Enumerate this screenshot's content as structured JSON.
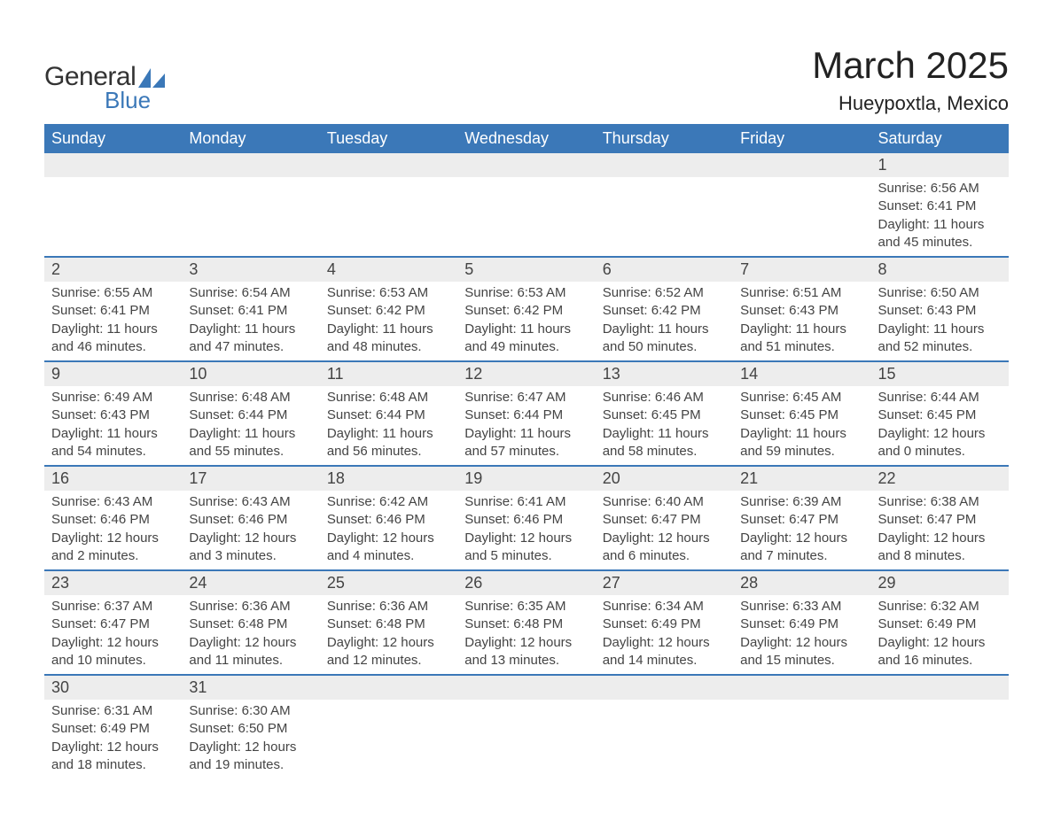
{
  "logo": {
    "text1": "General",
    "text2": "Blue",
    "shape_color": "#3b78b8"
  },
  "title": "March 2025",
  "location": "Hueypoxtla, Mexico",
  "colors": {
    "header_bg": "#3b78b8",
    "header_text": "#ffffff",
    "daynum_bg": "#ededed",
    "row_divider": "#3b78b8",
    "body_text": "#444444"
  },
  "day_headers": [
    "Sunday",
    "Monday",
    "Tuesday",
    "Wednesday",
    "Thursday",
    "Friday",
    "Saturday"
  ],
  "weeks": [
    [
      null,
      null,
      null,
      null,
      null,
      null,
      {
        "n": "1",
        "sr": "6:56 AM",
        "ss": "6:41 PM",
        "dl": "11 hours and 45 minutes."
      }
    ],
    [
      {
        "n": "2",
        "sr": "6:55 AM",
        "ss": "6:41 PM",
        "dl": "11 hours and 46 minutes."
      },
      {
        "n": "3",
        "sr": "6:54 AM",
        "ss": "6:41 PM",
        "dl": "11 hours and 47 minutes."
      },
      {
        "n": "4",
        "sr": "6:53 AM",
        "ss": "6:42 PM",
        "dl": "11 hours and 48 minutes."
      },
      {
        "n": "5",
        "sr": "6:53 AM",
        "ss": "6:42 PM",
        "dl": "11 hours and 49 minutes."
      },
      {
        "n": "6",
        "sr": "6:52 AM",
        "ss": "6:42 PM",
        "dl": "11 hours and 50 minutes."
      },
      {
        "n": "7",
        "sr": "6:51 AM",
        "ss": "6:43 PM",
        "dl": "11 hours and 51 minutes."
      },
      {
        "n": "8",
        "sr": "6:50 AM",
        "ss": "6:43 PM",
        "dl": "11 hours and 52 minutes."
      }
    ],
    [
      {
        "n": "9",
        "sr": "6:49 AM",
        "ss": "6:43 PM",
        "dl": "11 hours and 54 minutes."
      },
      {
        "n": "10",
        "sr": "6:48 AM",
        "ss": "6:44 PM",
        "dl": "11 hours and 55 minutes."
      },
      {
        "n": "11",
        "sr": "6:48 AM",
        "ss": "6:44 PM",
        "dl": "11 hours and 56 minutes."
      },
      {
        "n": "12",
        "sr": "6:47 AM",
        "ss": "6:44 PM",
        "dl": "11 hours and 57 minutes."
      },
      {
        "n": "13",
        "sr": "6:46 AM",
        "ss": "6:45 PM",
        "dl": "11 hours and 58 minutes."
      },
      {
        "n": "14",
        "sr": "6:45 AM",
        "ss": "6:45 PM",
        "dl": "11 hours and 59 minutes."
      },
      {
        "n": "15",
        "sr": "6:44 AM",
        "ss": "6:45 PM",
        "dl": "12 hours and 0 minutes."
      }
    ],
    [
      {
        "n": "16",
        "sr": "6:43 AM",
        "ss": "6:46 PM",
        "dl": "12 hours and 2 minutes."
      },
      {
        "n": "17",
        "sr": "6:43 AM",
        "ss": "6:46 PM",
        "dl": "12 hours and 3 minutes."
      },
      {
        "n": "18",
        "sr": "6:42 AM",
        "ss": "6:46 PM",
        "dl": "12 hours and 4 minutes."
      },
      {
        "n": "19",
        "sr": "6:41 AM",
        "ss": "6:46 PM",
        "dl": "12 hours and 5 minutes."
      },
      {
        "n": "20",
        "sr": "6:40 AM",
        "ss": "6:47 PM",
        "dl": "12 hours and 6 minutes."
      },
      {
        "n": "21",
        "sr": "6:39 AM",
        "ss": "6:47 PM",
        "dl": "12 hours and 7 minutes."
      },
      {
        "n": "22",
        "sr": "6:38 AM",
        "ss": "6:47 PM",
        "dl": "12 hours and 8 minutes."
      }
    ],
    [
      {
        "n": "23",
        "sr": "6:37 AM",
        "ss": "6:47 PM",
        "dl": "12 hours and 10 minutes."
      },
      {
        "n": "24",
        "sr": "6:36 AM",
        "ss": "6:48 PM",
        "dl": "12 hours and 11 minutes."
      },
      {
        "n": "25",
        "sr": "6:36 AM",
        "ss": "6:48 PM",
        "dl": "12 hours and 12 minutes."
      },
      {
        "n": "26",
        "sr": "6:35 AM",
        "ss": "6:48 PM",
        "dl": "12 hours and 13 minutes."
      },
      {
        "n": "27",
        "sr": "6:34 AM",
        "ss": "6:49 PM",
        "dl": "12 hours and 14 minutes."
      },
      {
        "n": "28",
        "sr": "6:33 AM",
        "ss": "6:49 PM",
        "dl": "12 hours and 15 minutes."
      },
      {
        "n": "29",
        "sr": "6:32 AM",
        "ss": "6:49 PM",
        "dl": "12 hours and 16 minutes."
      }
    ],
    [
      {
        "n": "30",
        "sr": "6:31 AM",
        "ss": "6:49 PM",
        "dl": "12 hours and 18 minutes."
      },
      {
        "n": "31",
        "sr": "6:30 AM",
        "ss": "6:50 PM",
        "dl": "12 hours and 19 minutes."
      },
      null,
      null,
      null,
      null,
      null
    ]
  ],
  "labels": {
    "sunrise": "Sunrise: ",
    "sunset": "Sunset: ",
    "daylight": "Daylight: "
  }
}
